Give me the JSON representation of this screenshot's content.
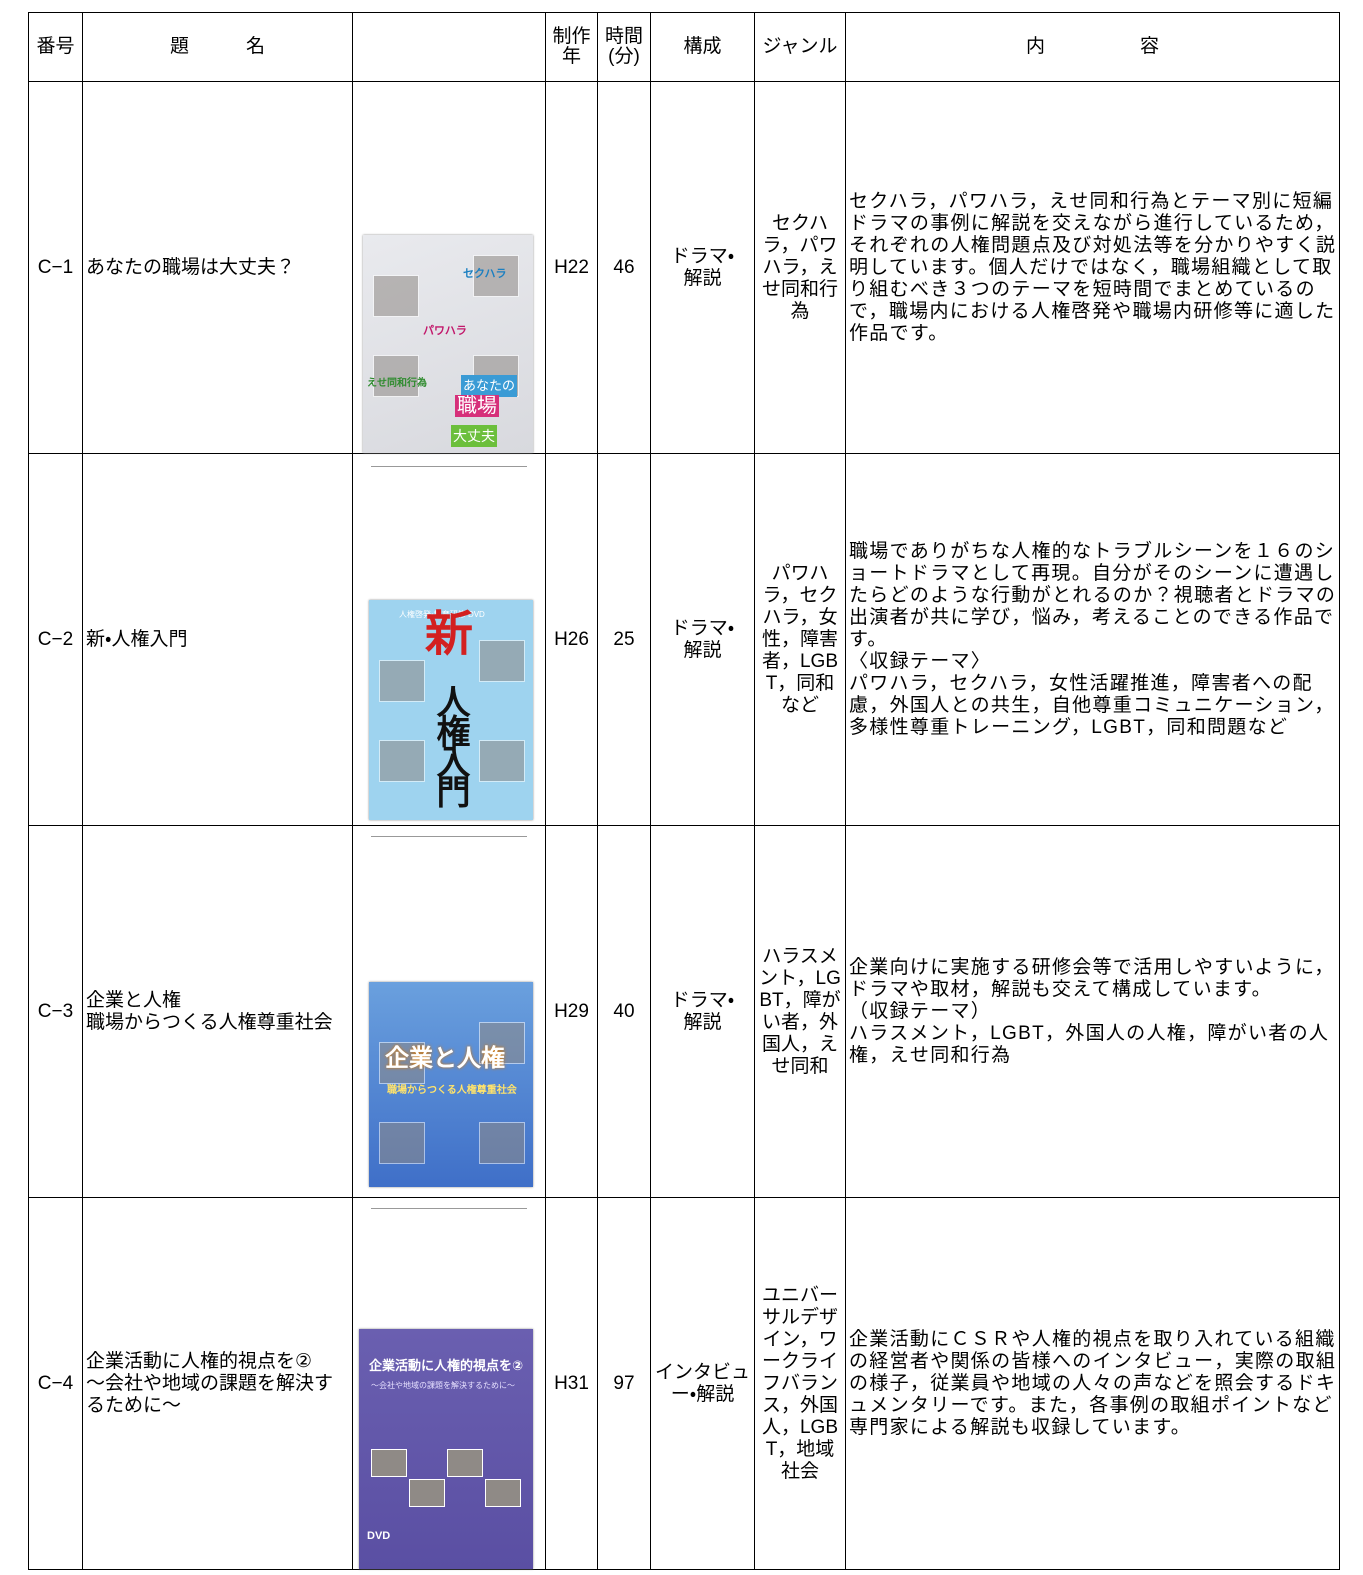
{
  "header": {
    "number": "番号",
    "title": "題　　　名",
    "year": "制作\n年",
    "minutes": "時間\n(分)",
    "format": "構成",
    "genre": "ジャンル",
    "content": "内　　　　　容"
  },
  "rows": [
    {
      "id": "C−1",
      "title": "あなたの職場は大丈夫？",
      "cover": [
        "セクハラ",
        "パワハラ",
        "えせ同和行為",
        "あなたの",
        "職場",
        "大丈夫"
      ],
      "year": "H22",
      "minutes": 46,
      "format": "ドラマ・\n解説",
      "genre": "セクハラ，パワハラ，えせ同和行為",
      "content": "セクハラ，パワハラ，えせ同和行為とテーマ別に短編ドラマの事例に解説を交えながら進行しているため，それぞれの人権問題点及び対処法等を分かりやすく説明しています。個人だけではなく，職場組織として取り組むべき３つのテーマを短時間でまとめているので，職場内における人権啓発や職場内研修等に適した作品です。"
    },
    {
      "id": "C−2",
      "title": "新・人権入門",
      "cover": [
        "人権啓発・教育研修 DVD",
        "新",
        "人権入門"
      ],
      "year": "H26",
      "minutes": 25,
      "format": "ドラマ・\n解説",
      "genre": "パワハラ，セクハラ，女性，障害者，LGBT，同和など",
      "content": "職場でありがちな人権的なトラブルシーンを１６のショートドラマとして再現。自分がそのシーンに遭遇したらどのような行動がとれるのか？視聴者とドラマの出演者が共に学び，悩み，考えることのできる作品です。\n〈収録テーマ〉\nパワハラ，セクハラ，女性活躍推進，障害者への配慮，外国人との共生，自他尊重コミュニケーション，多様性尊重トレーニング，LGBT，同和問題など"
    },
    {
      "id": "C−3",
      "title": "企業と人権\n職場からつくる人権尊重社会",
      "cover": [
        "企業と人権",
        "職場からつくる人権尊重社会"
      ],
      "year": "H29",
      "minutes": 40,
      "format": "ドラマ・\n解説",
      "genre": "ハラスメント，LGBT，障がい者，外国人，えせ同和",
      "content": "企業向けに実施する研修会等で活用しやすいように，ドラマや取材，解説も交えて構成しています。\n（収録テーマ）\nハラスメント，LGBT，外国人の人権，障がい者の人権，えせ同和行為"
    },
    {
      "id": "C−4",
      "title": "企業活動に人権的視点を②\n～会社や地域の課題を解決するために～",
      "cover": [
        "企業活動に人権的視点を②",
        "〜会社や地域の課題を解決するために〜",
        "DVD"
      ],
      "year": "H31",
      "minutes": 97,
      "format": "インタビュー・解説",
      "genre": "ユニバーサルデザイン，ワークライフバランス，外国人，LGBT，地域社会",
      "content": "企業活動にＣＳＲや人権的視点を取り入れている組織の経営者や関係の皆様へのインタビュー，実際の取組の様子，従業員や地域の人々の声などを照会するドキュメンタリーです。また，各事例の取組ポイントなど専門家による解説も収録しています。"
    }
  ]
}
